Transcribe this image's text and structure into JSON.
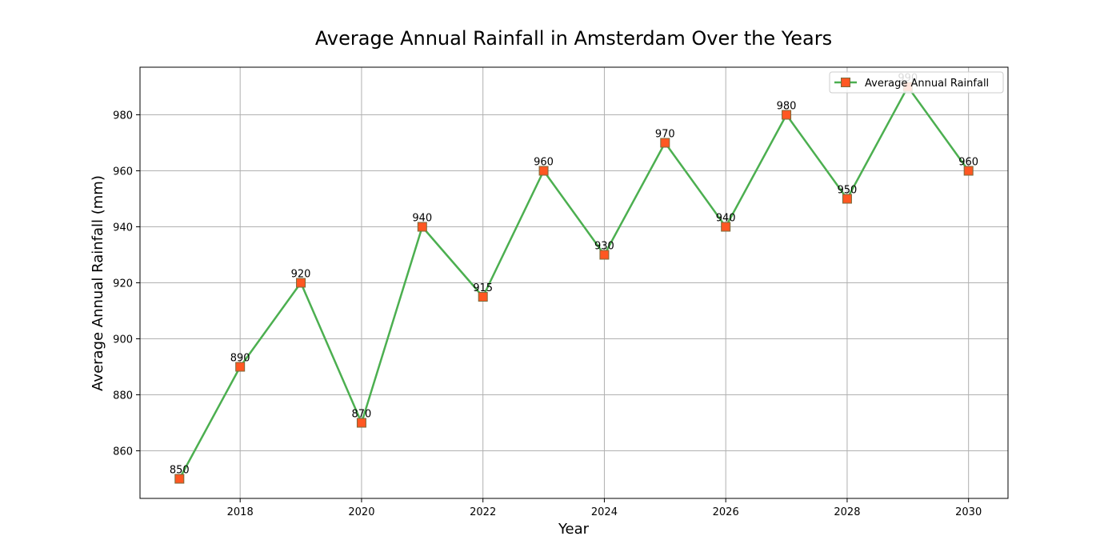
{
  "chart_data": {
    "type": "line",
    "title": "Average Annual Rainfall in Amsterdam Over the Years",
    "xlabel": "Year",
    "ylabel": "Average Annual Rainfall (mm)",
    "x": [
      2017,
      2018,
      2019,
      2020,
      2021,
      2022,
      2023,
      2024,
      2025,
      2026,
      2027,
      2028,
      2029,
      2030
    ],
    "series": [
      {
        "name": "Average Annual Rainfall",
        "values": [
          850,
          890,
          920,
          870,
          940,
          915,
          960,
          930,
          970,
          940,
          980,
          950,
          990,
          960
        ],
        "line_color": "#4caf50",
        "marker_color": "#ff5722",
        "marker": "square"
      }
    ],
    "xlim": [
      2016.35,
      2030.65
    ],
    "ylim": [
      843,
      997
    ],
    "xticks": [
      2018,
      2020,
      2022,
      2024,
      2026,
      2028,
      2030
    ],
    "yticks": [
      860,
      880,
      900,
      920,
      940,
      960,
      980
    ],
    "grid": true,
    "legend_position": "top-right",
    "data_labels": true
  }
}
